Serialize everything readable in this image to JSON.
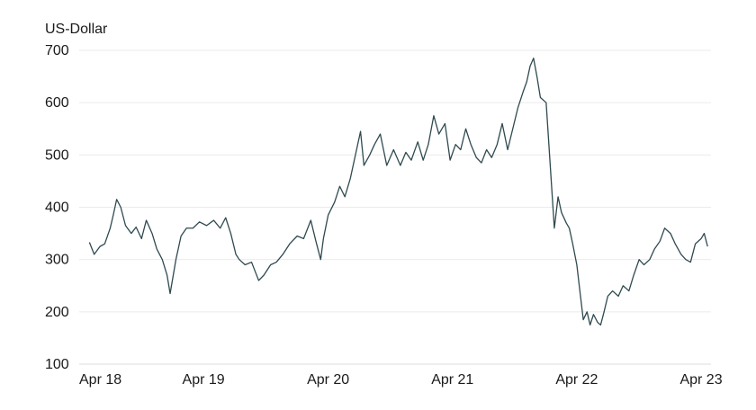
{
  "chart_data": {
    "type": "line",
    "ylabel": "US-Dollar",
    "ylim": [
      100,
      700
    ],
    "yticks": [
      700,
      600,
      500,
      400,
      300,
      200,
      100
    ],
    "xlim": [
      "2018-04-01",
      "2023-04-30"
    ],
    "xticks": [
      {
        "date": "2018-04-01",
        "label": "Apr 18"
      },
      {
        "date": "2019-04-01",
        "label": "Apr 19"
      },
      {
        "date": "2020-04-01",
        "label": "Apr 20"
      },
      {
        "date": "2021-04-01",
        "label": "Apr 21"
      },
      {
        "date": "2022-04-01",
        "label": "Apr 22"
      },
      {
        "date": "2023-04-01",
        "label": "Apr 23"
      }
    ],
    "grid": true,
    "line_color": "#2f4a4f",
    "series": [
      {
        "x": [
          "2018-05-01",
          "2018-05-15",
          "2018-06-01",
          "2018-06-15",
          "2018-07-01",
          "2018-07-10",
          "2018-07-20",
          "2018-08-01",
          "2018-08-15",
          "2018-09-01",
          "2018-09-15",
          "2018-10-01",
          "2018-10-15",
          "2018-11-01",
          "2018-11-15",
          "2018-12-01",
          "2018-12-15",
          "2018-12-24",
          "2019-01-10",
          "2019-01-25",
          "2019-02-10",
          "2019-03-01",
          "2019-03-20",
          "2019-04-10",
          "2019-05-01",
          "2019-05-20",
          "2019-06-05",
          "2019-06-20",
          "2019-07-05",
          "2019-07-15",
          "2019-08-01",
          "2019-08-20",
          "2019-09-10",
          "2019-09-25",
          "2019-10-15",
          "2019-11-01",
          "2019-11-20",
          "2019-12-10",
          "2020-01-01",
          "2020-01-20",
          "2020-02-10",
          "2020-02-25",
          "2020-03-10",
          "2020-03-18",
          "2020-04-01",
          "2020-04-20",
          "2020-05-05",
          "2020-05-20",
          "2020-06-05",
          "2020-06-20",
          "2020-07-05",
          "2020-07-15",
          "2020-08-01",
          "2020-08-15",
          "2020-09-01",
          "2020-09-20",
          "2020-10-10",
          "2020-10-30",
          "2020-11-15",
          "2020-12-01",
          "2020-12-20",
          "2021-01-05",
          "2021-01-20",
          "2021-02-05",
          "2021-02-20",
          "2021-03-10",
          "2021-03-25",
          "2021-04-10",
          "2021-04-25",
          "2021-05-10",
          "2021-05-25",
          "2021-06-10",
          "2021-06-25",
          "2021-07-10",
          "2021-07-25",
          "2021-08-10",
          "2021-08-25",
          "2021-09-10",
          "2021-09-25",
          "2021-10-10",
          "2021-10-25",
          "2021-11-05",
          "2021-11-15",
          "2021-11-25",
          "2021-12-05",
          "2021-12-15",
          "2022-01-01",
          "2022-01-15",
          "2022-01-25",
          "2022-02-05",
          "2022-02-15",
          "2022-03-01",
          "2022-03-10",
          "2022-03-20",
          "2022-04-01",
          "2022-04-10",
          "2022-04-20",
          "2022-05-01",
          "2022-05-10",
          "2022-05-20",
          "2022-06-01",
          "2022-06-10",
          "2022-06-20",
          "2022-07-01",
          "2022-07-15",
          "2022-08-01",
          "2022-08-15",
          "2022-09-01",
          "2022-09-15",
          "2022-10-01",
          "2022-10-15",
          "2022-11-01",
          "2022-11-15",
          "2022-12-01",
          "2022-12-15",
          "2023-01-01",
          "2023-01-15",
          "2023-02-01",
          "2023-02-15",
          "2023-03-01",
          "2023-03-15",
          "2023-04-01",
          "2023-04-10",
          "2023-04-20"
        ],
        "y": [
          333,
          310,
          325,
          330,
          360,
          385,
          415,
          400,
          365,
          350,
          362,
          340,
          375,
          350,
          320,
          300,
          270,
          235,
          300,
          345,
          360,
          360,
          372,
          365,
          375,
          360,
          380,
          350,
          310,
          300,
          290,
          295,
          260,
          270,
          290,
          295,
          310,
          330,
          345,
          340,
          375,
          335,
          300,
          340,
          385,
          410,
          440,
          420,
          455,
          500,
          545,
          480,
          500,
          520,
          540,
          480,
          510,
          480,
          505,
          490,
          525,
          490,
          520,
          575,
          540,
          560,
          490,
          520,
          510,
          550,
          520,
          495,
          485,
          510,
          495,
          520,
          560,
          510,
          550,
          590,
          620,
          640,
          670,
          685,
          650,
          610,
          600,
          460,
          360,
          420,
          390,
          370,
          360,
          330,
          290,
          240,
          185,
          200,
          175,
          195,
          180,
          175,
          200,
          230,
          240,
          230,
          250,
          240,
          270,
          300,
          290,
          300,
          320,
          335,
          360,
          350,
          330,
          310,
          300,
          295,
          330,
          340,
          350,
          325
        ]
      }
    ]
  }
}
